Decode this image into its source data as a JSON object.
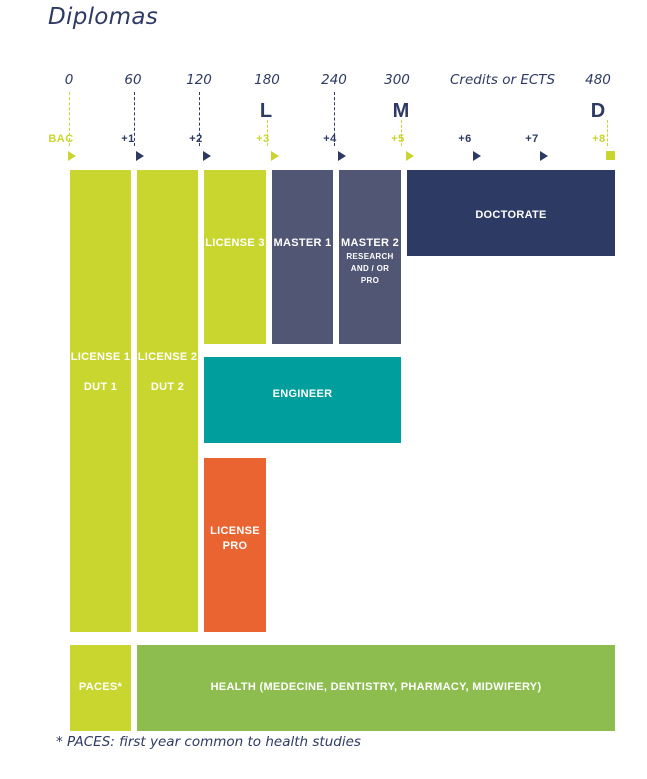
{
  "title": "Diplomas",
  "credits": {
    "values": [
      "0",
      "60",
      "120",
      "180",
      "240",
      "300",
      "480"
    ],
    "label": "Credits or ECTS"
  },
  "lmd": {
    "l": "L",
    "m": "M",
    "d": "D"
  },
  "years": {
    "bac": "BAC",
    "y1": "+1",
    "y2": "+2",
    "y3": "+3",
    "y4": "+4",
    "y5": "+5",
    "y6": "+6",
    "y7": "+7",
    "y8": "+8"
  },
  "blocks": {
    "license1": "LICENSE 1",
    "dut1": "DUT 1",
    "license2": "LICENSE 2",
    "dut2": "DUT 2",
    "license3": "LICENSE 3",
    "master1": "MASTER 1",
    "master2": "MASTER 2",
    "master2_sub1": "RESEARCH",
    "master2_sub2": "AND / OR",
    "master2_sub3": "PRO",
    "doctorate": "DOCTORATE",
    "engineer": "ENGINEER",
    "license_pro_1": "LICENSE",
    "license_pro_2": "PRO",
    "paces": "PACES*",
    "health": "HEALTH (MEDECINE, DENTISTRY, PHARMACY, MIDWIFERY)"
  },
  "footnote": "* PACES: first year common to health studies",
  "colors": {
    "lime": "#c8d62f",
    "navy": "#2d3a63",
    "slate": "#515675",
    "teal": "#009e9c",
    "orange": "#e96430",
    "health_green": "#8cbd4e"
  }
}
